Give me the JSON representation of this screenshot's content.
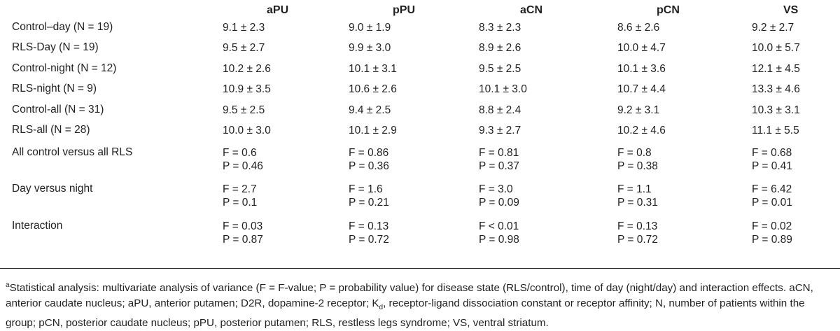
{
  "columns": [
    "aPU",
    "pPU",
    "aCN",
    "pCN",
    "VS"
  ],
  "rows": [
    {
      "label": "Control–day (N = 19)",
      "values": [
        "9.1 ± 2.3",
        "9.0 ± 1.9",
        "8.3 ± 2.3",
        "8.6 ± 2.6",
        "9.2 ± 2.7"
      ]
    },
    {
      "label": "RLS-Day (N = 19)",
      "values": [
        "9.5 ± 2.7",
        "9.9 ± 3.0",
        "8.9 ± 2.6",
        "10.0 ± 4.7",
        "10.0 ± 5.7"
      ]
    },
    {
      "label": "Control-night (N = 12)",
      "values": [
        "10.2 ± 2.6",
        "10.1 ± 3.1",
        "9.5 ± 2.5",
        "10.1 ± 3.6",
        "12.1 ± 4.5"
      ]
    },
    {
      "label": "RLS-night (N = 9)",
      "values": [
        "10.9 ± 3.5",
        "10.6 ± 2.6",
        "10.1 ± 3.0",
        "10.7 ± 4.4",
        "13.3 ± 4.6"
      ]
    },
    {
      "label": "Control-all (N = 31)",
      "values": [
        "9.5 ± 2.5",
        "9.4 ± 2.5",
        "8.8 ± 2.4",
        "9.2 ± 3.1",
        "10.3 ± 3.1"
      ]
    },
    {
      "label": "RLS-all (N = 28)",
      "values": [
        "10.0 ± 3.0",
        "10.1 ± 2.9",
        "9.3 ± 2.7",
        "10.2 ± 4.6",
        "11.1 ± 5.5"
      ]
    }
  ],
  "stats": [
    {
      "label": "All control versus all RLS",
      "f": [
        "F = 0.6",
        "F = 0.86",
        "F = 0.81",
        "F = 0.8",
        "F = 0.68"
      ],
      "p": [
        "P = 0.46",
        "P = 0.36",
        "P = 0.37",
        "P = 0.38",
        "P = 0.41"
      ]
    },
    {
      "label": "Day versus night",
      "f": [
        "F = 2.7",
        "F = 1.6",
        "F = 3.0",
        "F = 1.1",
        "F = 6.42"
      ],
      "p": [
        "P = 0.1",
        "P = 0.21",
        "P = 0.09",
        "P = 0.31",
        "P = 0.01"
      ]
    },
    {
      "label": "Interaction",
      "f": [
        "F = 0.03",
        "F = 0.13",
        "F < 0.01",
        "F = 0.13",
        "F = 0.02"
      ],
      "p": [
        "P = 0.87",
        "P = 0.72",
        "P = 0.98",
        "P = 0.72",
        "P = 0.89"
      ]
    }
  ],
  "footnote": {
    "marker": "a",
    "part1": "Statistical analysis: multivariate analysis of variance (F = F-value; P = probability value) for disease state (RLS/control), time of day (night/day) and interaction effects. aCN, anterior caudate nucleus; aPU, anterior putamen; D2R, dopamine-2 receptor; K",
    "sub": "d",
    "part2": ", receptor-ligand dissociation constant or receptor affinity; N, number of patients within the group; pCN, posterior caudate nucleus; pPU, posterior putamen; RLS, restless legs syndrome; VS, ventral striatum."
  }
}
